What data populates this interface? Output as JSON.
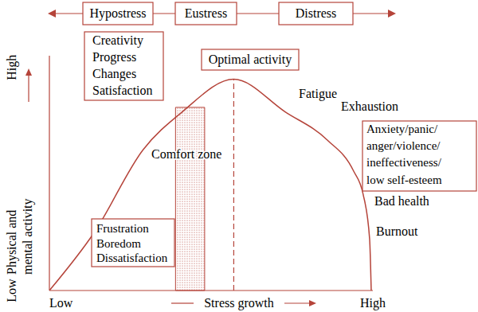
{
  "chart_data": {
    "type": "line",
    "x": [
      0,
      14,
      29,
      41,
      57,
      73,
      86,
      94,
      97,
      99,
      99.5
    ],
    "values": [
      0,
      25,
      60,
      76,
      90,
      76,
      64,
      51,
      41,
      22,
      0
    ],
    "color": "#b5443a",
    "xlim": [
      0,
      100
    ],
    "ylim": [
      0,
      100
    ],
    "xticks": [
      {
        "value": 0,
        "label": "Low"
      },
      {
        "value": 100,
        "label": "High"
      }
    ],
    "yticks": [
      {
        "value": 0,
        "label": "Low"
      },
      {
        "value": 95,
        "label": "High"
      }
    ],
    "x_label": "Stress growth",
    "y_label": [
      "Physical and",
      "mental activity"
    ],
    "grid": false,
    "zones": [
      "Hypostress",
      "Eustress",
      "Distress"
    ],
    "comfort_zone": {
      "label": "Comfort zone",
      "x": [
        39,
        48
      ],
      "y": [
        0,
        78
      ]
    },
    "optimal": {
      "label": "Optimal activity",
      "x": 57,
      "y": [
        0,
        90
      ]
    },
    "notes": {
      "eustress_effects": [
        "Creativity",
        "Progress",
        "Changes",
        "Satisfaction"
      ],
      "hypostress_effects": [
        "Frustration",
        "Boredom",
        "Dissatisfaction"
      ],
      "distress_effects": [
        "Anxiety/panic/",
        "anger/violence/",
        "ineffectiveness/",
        "low self-esteem"
      ],
      "fatigue": "Fatigue",
      "exhaustion": "Exhaustion",
      "bad_health": "Bad health",
      "burnout": "Burnout"
    }
  }
}
